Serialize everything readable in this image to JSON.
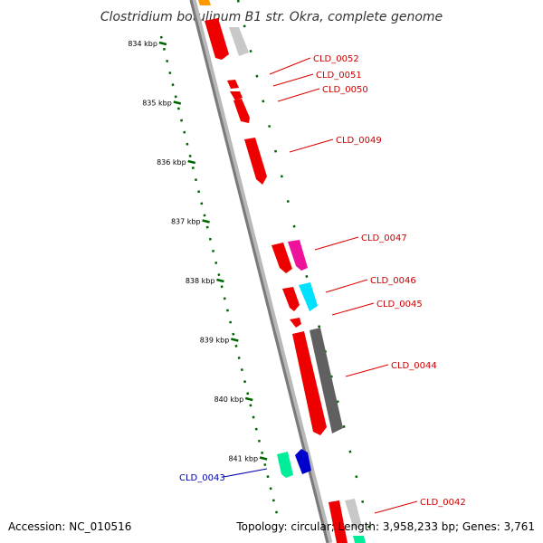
{
  "title": "Clostridium botulinum B1 str. Okra, complete genome",
  "accession": "Accession: NC_010516",
  "summary": "Topology: circular; Length: 3,958,233 bp; Genes: 3,761",
  "ruler": {
    "color": "#006600",
    "ticks": [
      {
        "label": "834 kbp",
        "kbp": 834
      },
      {
        "label": "835 kbp",
        "kbp": 835
      },
      {
        "label": "836 kbp",
        "kbp": 836
      },
      {
        "label": "837 kbp",
        "kbp": 837
      },
      {
        "label": "838 kbp",
        "kbp": 838
      },
      {
        "label": "839 kbp",
        "kbp": 839
      },
      {
        "label": "840 kbp",
        "kbp": 840
      },
      {
        "label": "841 kbp",
        "kbp": 841
      }
    ]
  },
  "gene_labels": [
    {
      "text": "CLD_0052",
      "color": "#cc0000"
    },
    {
      "text": "CLD_0051",
      "color": "#cc0000"
    },
    {
      "text": "CLD_0050",
      "color": "#cc0000"
    },
    {
      "text": "CLD_0049",
      "color": "#cc0000"
    },
    {
      "text": "CLD_0047",
      "color": "#cc0000"
    },
    {
      "text": "CLD_0046",
      "color": "#cc0000"
    },
    {
      "text": "CLD_0045",
      "color": "#cc0000"
    },
    {
      "text": "CLD_0044",
      "color": "#cc0000"
    },
    {
      "text": "CLD_0043",
      "color": "#0000aa"
    },
    {
      "text": "CLD_0042",
      "color": "#cc0000"
    }
  ],
  "colors": {
    "gene_red": "#ee0000",
    "gene_gray": "#c8c8c8",
    "gene_darkgray": "#606060",
    "gene_magenta": "#ee1199",
    "gene_cyan": "#00e0ff",
    "gene_green": "#00ee99",
    "gene_blue": "#0000cc",
    "gene_orange": "#ff9900",
    "backbone": "#8a8a8a"
  }
}
